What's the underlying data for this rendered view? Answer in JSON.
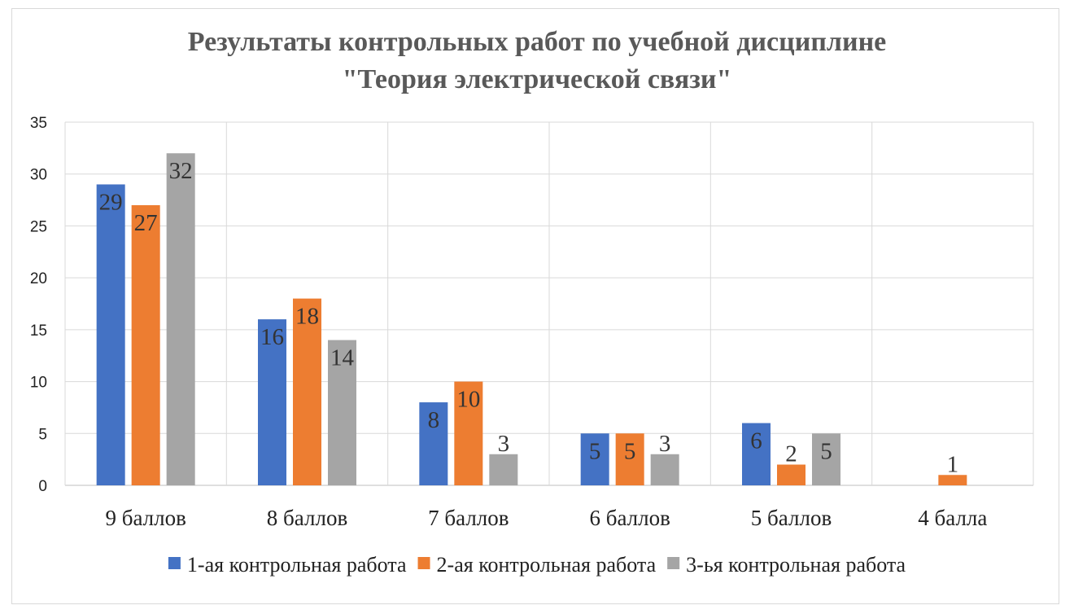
{
  "chart_data": {
    "type": "bar",
    "title_lines": [
      "Результаты контрольных работ по учебной дисциплине",
      "\"Теория электрической связи\""
    ],
    "categories": [
      "9 баллов",
      "8 баллов",
      "7 баллов",
      "6 баллов",
      "5 баллов",
      "4 балла"
    ],
    "series": [
      {
        "name": "1-ая контрольная работа",
        "color": "#4472C4",
        "values": [
          29,
          16,
          8,
          5,
          6,
          null
        ]
      },
      {
        "name": "2-ая контрольная работа",
        "color": "#ED7D31",
        "values": [
          27,
          18,
          10,
          5,
          2,
          1
        ]
      },
      {
        "name": "3-ья контрольная работа",
        "color": "#A5A5A5",
        "values": [
          32,
          14,
          3,
          3,
          5,
          null
        ]
      }
    ],
    "ylim": [
      0,
      35
    ],
    "yticks": [
      0,
      5,
      10,
      15,
      20,
      25,
      30,
      35
    ],
    "grid": true,
    "legend_position": "bottom"
  }
}
